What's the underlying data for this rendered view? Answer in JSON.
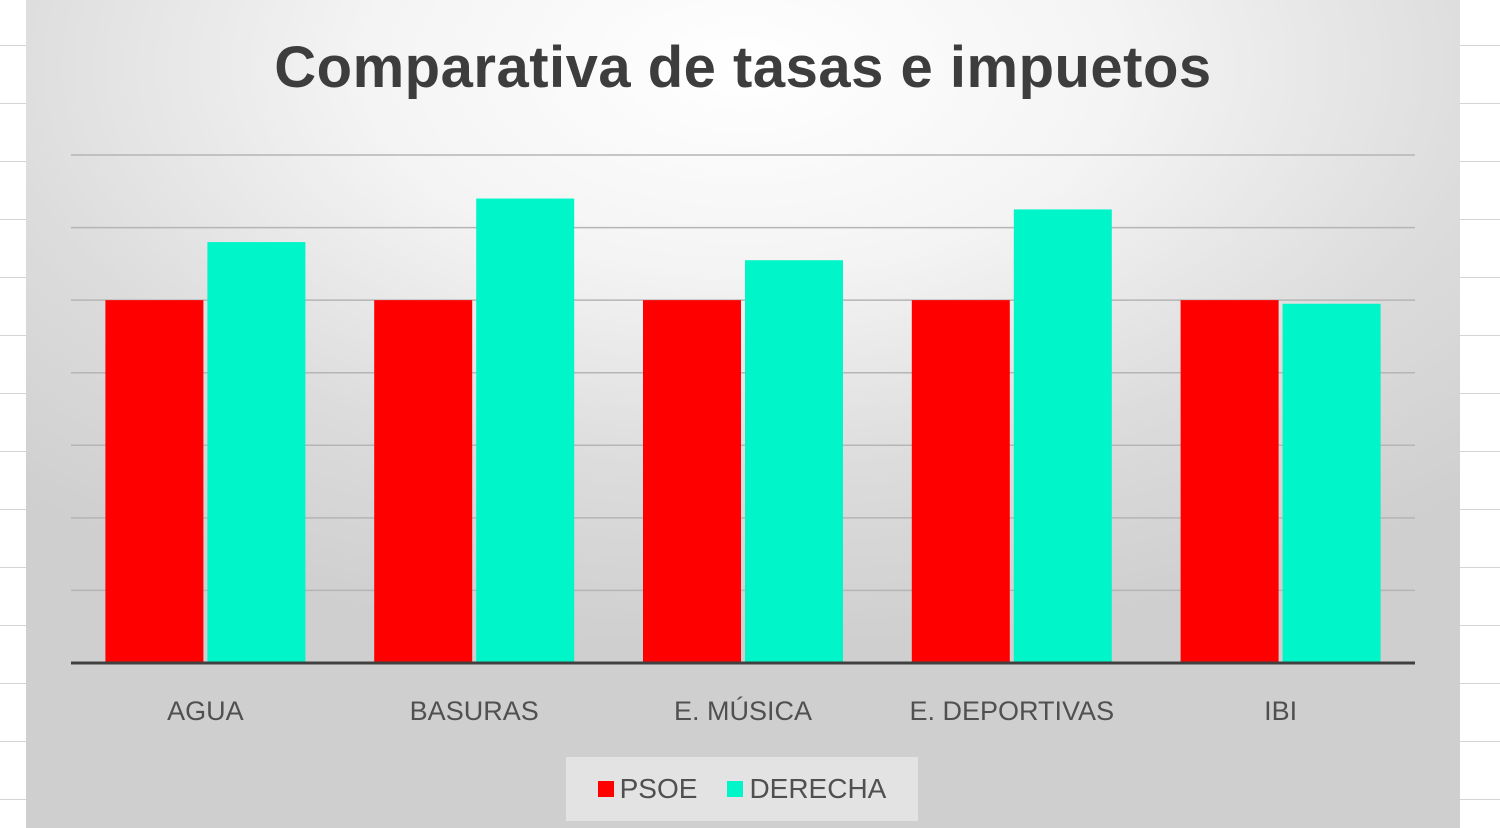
{
  "chart_data": {
    "type": "bar",
    "title": "Comparativa de tasas e impuetos",
    "xlabel": "",
    "ylabel": "",
    "categories": [
      "AGUA",
      "BASURAS",
      "E. MÚSICA",
      "E. DEPORTIVAS",
      "IBI"
    ],
    "series": [
      {
        "name": "PSOE",
        "color": "#ff0000",
        "values": [
          5.0,
          5.0,
          5.0,
          5.0,
          5.0
        ]
      },
      {
        "name": "DERECHA",
        "color": "#00f5c8",
        "values": [
          5.8,
          6.4,
          5.55,
          6.25,
          4.95
        ]
      }
    ],
    "ylim": [
      0,
      7
    ],
    "grid": true,
    "legend": "bottom-center",
    "y_tick_labels_shown": false
  }
}
